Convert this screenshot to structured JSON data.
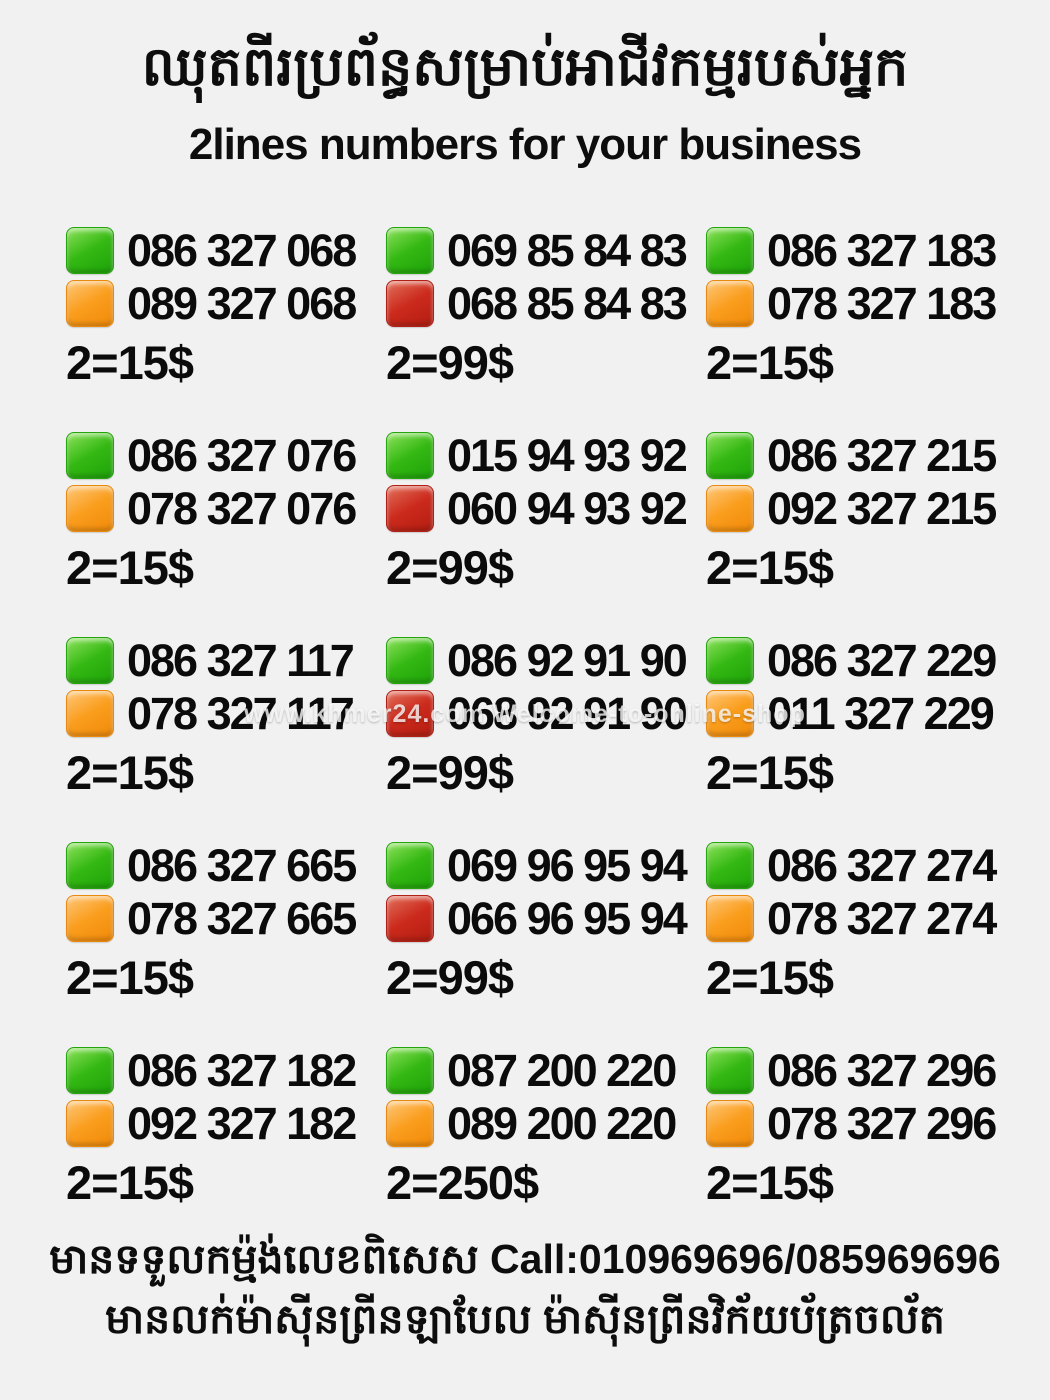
{
  "header": {
    "title_khmer": "ឈុតពីរប្រព័ន្ធសម្រាប់អាជីវកម្មរបស់អ្នក",
    "subtitle": "2lines numbers for your business"
  },
  "colors": {
    "green": "#2db410",
    "orange": "#f99c1c",
    "red": "#cb281b",
    "background": "#f1f1f2",
    "text": "#0b0b0b"
  },
  "watermark": "www.khmer24.com Welcome-to-online-shop",
  "grid": {
    "cells": [
      {
        "line1": {
          "color": "green",
          "number": "086 327 068"
        },
        "line2": {
          "color": "orange",
          "number": "089 327 068"
        },
        "price": "2=15$"
      },
      {
        "line1": {
          "color": "green",
          "number": "069 85 84 83"
        },
        "line2": {
          "color": "red",
          "number": "068 85 84 83"
        },
        "price": "2=99$"
      },
      {
        "line1": {
          "color": "green",
          "number": "086 327 183"
        },
        "line2": {
          "color": "orange",
          "number": "078 327 183"
        },
        "price": "2=15$"
      },
      {
        "line1": {
          "color": "green",
          "number": "086 327 076"
        },
        "line2": {
          "color": "orange",
          "number": "078 327 076"
        },
        "price": "2=15$"
      },
      {
        "line1": {
          "color": "green",
          "number": "015 94 93 92"
        },
        "line2": {
          "color": "red",
          "number": "060 94 93 92"
        },
        "price": "2=99$"
      },
      {
        "line1": {
          "color": "green",
          "number": "086 327 215"
        },
        "line2": {
          "color": "orange",
          "number": "092 327 215"
        },
        "price": "2=15$"
      },
      {
        "line1": {
          "color": "green",
          "number": "086 327 117"
        },
        "line2": {
          "color": "orange",
          "number": "078 327 117"
        },
        "price": "2=15$"
      },
      {
        "line1": {
          "color": "green",
          "number": "086 92 91 90"
        },
        "line2": {
          "color": "red",
          "number": "068 92 91 90"
        },
        "price": "2=99$"
      },
      {
        "line1": {
          "color": "green",
          "number": "086 327 229"
        },
        "line2": {
          "color": "orange",
          "number": "011 327 229"
        },
        "price": "2=15$"
      },
      {
        "line1": {
          "color": "green",
          "number": "086 327 665"
        },
        "line2": {
          "color": "orange",
          "number": "078 327 665"
        },
        "price": "2=15$"
      },
      {
        "line1": {
          "color": "green",
          "number": "069 96 95 94"
        },
        "line2": {
          "color": "red",
          "number": "066 96 95 94"
        },
        "price": "2=99$"
      },
      {
        "line1": {
          "color": "green",
          "number": "086 327 274"
        },
        "line2": {
          "color": "orange",
          "number": "078 327 274"
        },
        "price": "2=15$"
      },
      {
        "line1": {
          "color": "green",
          "number": "086 327 182"
        },
        "line2": {
          "color": "orange",
          "number": "092 327 182"
        },
        "price": "2=15$"
      },
      {
        "line1": {
          "color": "green",
          "number": "087 200 220"
        },
        "line2": {
          "color": "orange",
          "number": "089 200 220"
        },
        "price": "2=250$"
      },
      {
        "line1": {
          "color": "green",
          "number": "086 327 296"
        },
        "line2": {
          "color": "orange",
          "number": "078 327 296"
        },
        "price": "2=15$"
      }
    ]
  },
  "footer": {
    "line1": "មានទទួលកម្ម៉ង់លេខពិសេស Call:010969696/085969696",
    "line2": "មានលក់ម៉ាស៊ីនព្រីនឡាបែល ម៉ាស៊ីនព្រីនវិក័យប័ត្រចល័ត"
  }
}
